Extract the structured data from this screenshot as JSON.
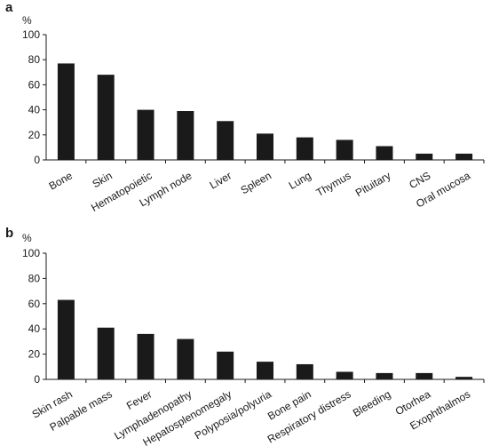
{
  "chart_data": [
    {
      "type": "bar",
      "panel": "a",
      "ylabel": "%",
      "ylim": [
        0,
        100
      ],
      "yticks": [
        0,
        20,
        40,
        60,
        80,
        100
      ],
      "grid": false,
      "categories": [
        "Bone",
        "Skin",
        "Hematopoietic",
        "Lymph node",
        "Liver",
        "Spleen",
        "Lung",
        "Thymus",
        "Pituitary",
        "CNS",
        "Oral mucosa"
      ],
      "values": [
        77,
        68,
        40,
        39,
        31,
        21,
        18,
        16,
        11,
        5,
        5
      ],
      "color": "#1a1a1a"
    },
    {
      "type": "bar",
      "panel": "b",
      "ylabel": "%",
      "ylim": [
        0,
        100
      ],
      "yticks": [
        0,
        20,
        40,
        60,
        80,
        100
      ],
      "grid": false,
      "categories": [
        "Skin rash",
        "Palpable mass",
        "Fever",
        "Lymphadenopathy",
        "Hepatosplenomegaly",
        "Polyposia/polyuria",
        "Bone pain",
        "Respiratory distress",
        "Bleeding",
        "Otorhea",
        "Exophthalmos"
      ],
      "values": [
        63,
        41,
        36,
        32,
        22,
        14,
        12,
        6,
        5,
        5,
        2
      ],
      "color": "#1a1a1a"
    }
  ]
}
